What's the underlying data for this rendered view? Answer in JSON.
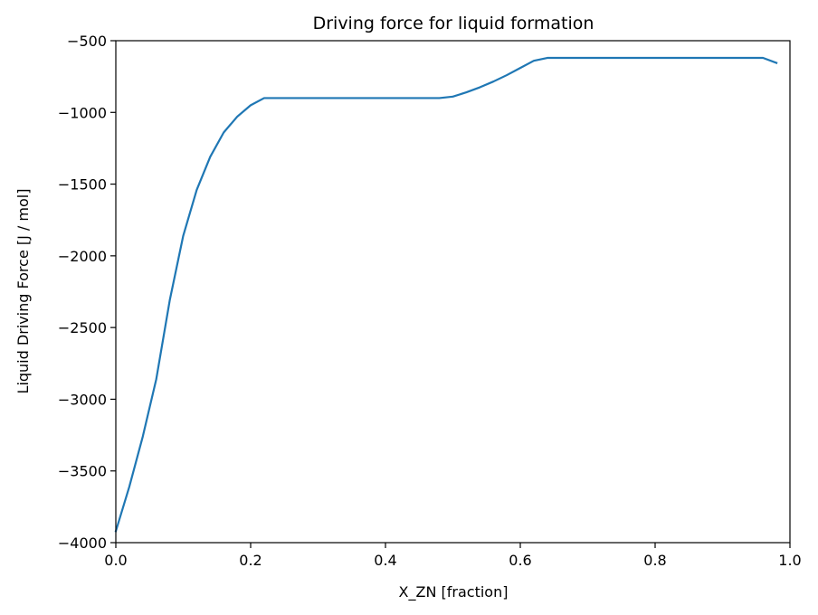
{
  "chart_data": {
    "type": "line",
    "title": "Driving force for liquid formation",
    "xlabel": "X_ZN [fraction]",
    "ylabel": "Liquid Driving Force [J / mol]",
    "xlim": [
      0.0,
      1.0
    ],
    "ylim": [
      -4000,
      -500
    ],
    "xticks": [
      0.0,
      0.2,
      0.4,
      0.6,
      0.8,
      1.0
    ],
    "xtick_labels": [
      "0.0",
      "0.2",
      "0.4",
      "0.6",
      "0.8",
      "1.0"
    ],
    "yticks": [
      -4000,
      -3500,
      -3000,
      -2500,
      -2000,
      -1500,
      -1000,
      -500
    ],
    "ytick_labels": [
      "−4000",
      "−3500",
      "−3000",
      "−2500",
      "−2000",
      "−1500",
      "−1000",
      "−500"
    ],
    "grid": false,
    "series": [
      {
        "color": "#1f77b4",
        "x": [
          0.0,
          0.02,
          0.04,
          0.06,
          0.08,
          0.1,
          0.12,
          0.14,
          0.16,
          0.18,
          0.2,
          0.22,
          0.24,
          0.26,
          0.28,
          0.3,
          0.32,
          0.34,
          0.36,
          0.38,
          0.4,
          0.42,
          0.44,
          0.46,
          0.48,
          0.5,
          0.52,
          0.54,
          0.56,
          0.58,
          0.6,
          0.62,
          0.64,
          0.66,
          0.68,
          0.7,
          0.72,
          0.74,
          0.76,
          0.78,
          0.8,
          0.82,
          0.84,
          0.86,
          0.88,
          0.9,
          0.92,
          0.94,
          0.96,
          0.98
        ],
        "y": [
          -3920,
          -3610,
          -3260,
          -2860,
          -2310,
          -1860,
          -1540,
          -1310,
          -1140,
          -1030,
          -950,
          -900,
          -900,
          -900,
          -900,
          -900,
          -900,
          -900,
          -900,
          -900,
          -900,
          -900,
          -900,
          -900,
          -900,
          -890,
          -860,
          -825,
          -785,
          -740,
          -690,
          -640,
          -620,
          -620,
          -620,
          -620,
          -620,
          -620,
          -620,
          -620,
          -620,
          -620,
          -620,
          -620,
          -620,
          -620,
          -620,
          -620,
          -620,
          -655
        ]
      }
    ]
  }
}
